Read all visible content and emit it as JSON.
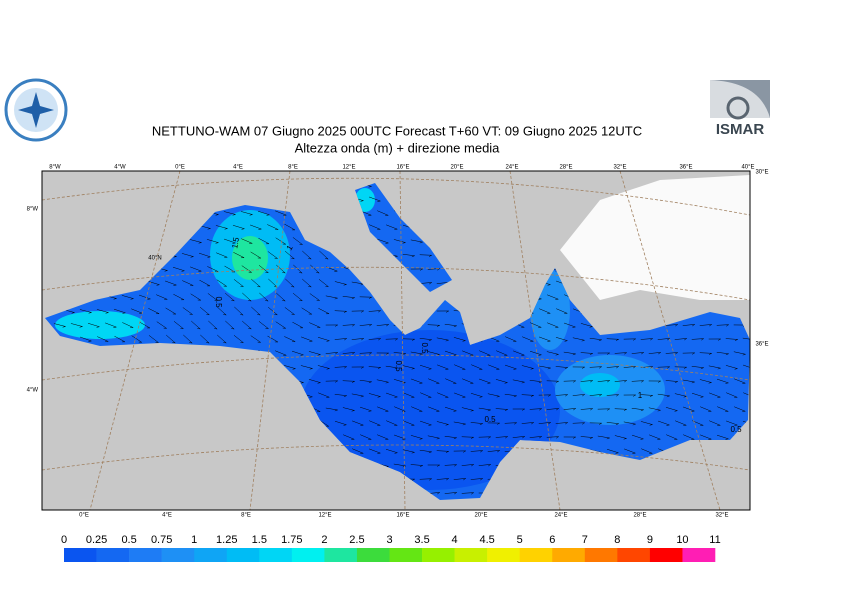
{
  "header": {
    "title": "NETTUNO-WAM  07   Giugno  2025 00UTC Forecast T+60 VT: 09   Giugno  2025 12UTC",
    "subtitle": "Altezza onda (m) + direzione media",
    "logo_right": "ISMAR"
  },
  "map": {
    "top_labels": [
      "8°W",
      "4°W",
      "0°E",
      "4°E",
      "8°E",
      "12°E",
      "16°E",
      "20°E",
      "24°E",
      "28°E",
      "32°E",
      "36°E",
      "40°E"
    ],
    "bottom_labels": [
      "0°E",
      "4°E",
      "8°E",
      "12°E",
      "16°E",
      "20°E",
      "24°E",
      "28°E",
      "32°E"
    ],
    "left_labels": [
      "8°W",
      "4°W"
    ],
    "inner_label": "40°N",
    "right_labels": [
      "30°E",
      "36°E"
    ],
    "contour_labels": [
      "1.5",
      "1",
      "0.5",
      "0.5",
      "0.5",
      "0.5",
      "1",
      "0.5"
    ]
  },
  "colorbar": {
    "labels": [
      0,
      0.25,
      0.5,
      0.75,
      1,
      1.25,
      1.5,
      1.75,
      2,
      2.5,
      3,
      3.5,
      4,
      4.5,
      5,
      6,
      7,
      8,
      9,
      10,
      11
    ],
    "colors": [
      "#0a55f0",
      "#1468f2",
      "#1e7cf5",
      "#1e90f5",
      "#0fa5f5",
      "#00bcf5",
      "#00d6f5",
      "#00f0f0",
      "#1ee6a0",
      "#3cdc3c",
      "#64e614",
      "#96f000",
      "#c8f000",
      "#f0f000",
      "#ffd200",
      "#ffaa00",
      "#ff7800",
      "#ff4600",
      "#ff0000",
      "#ff1eb4"
    ]
  }
}
